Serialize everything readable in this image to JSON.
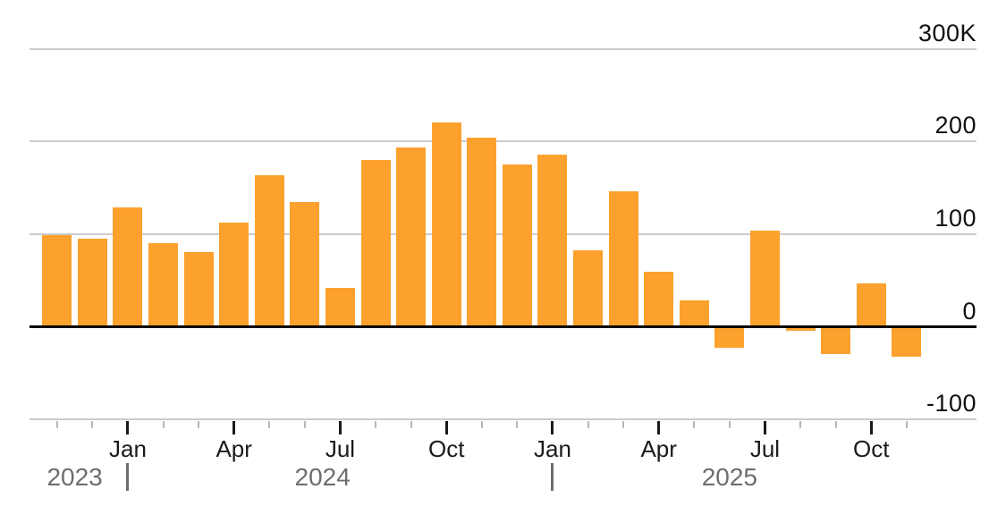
{
  "chart_data": {
    "type": "bar",
    "title": "",
    "x": [
      "Nov 2023",
      "Dec 2023",
      "Jan 2024",
      "Feb 2024",
      "Mar 2024",
      "Apr 2024",
      "May 2024",
      "Jun 2024",
      "Jul 2024",
      "Aug 2024",
      "Sep 2024",
      "Oct 2024",
      "Nov 2024",
      "Dec 2024",
      "Jan 2025",
      "Feb 2025",
      "Mar 2025",
      "Apr 2025",
      "May 2025",
      "Jun 2025",
      "Jul 2025",
      "Aug 2025",
      "Sep 2025",
      "Oct 2025",
      "Nov 2025"
    ],
    "values": [
      99,
      95,
      129,
      90,
      81,
      113,
      164,
      135,
      42,
      180,
      194,
      221,
      204,
      175,
      186,
      83,
      146,
      60,
      29,
      -22,
      104,
      -4,
      -29,
      47,
      -32
    ],
    "unit": "K",
    "ylim": [
      -100,
      300
    ],
    "grid": "horizontal",
    "legend_position": "none",
    "y_axis": {
      "position": "right",
      "ticks": [
        {
          "label": "300K",
          "value": 300
        },
        {
          "label": "200",
          "value": 200
        },
        {
          "label": "100",
          "value": 100
        },
        {
          "label": "0",
          "value": 0
        },
        {
          "label": "-100",
          "value": -100
        }
      ]
    },
    "x_axis": {
      "major_tick_months": [
        "Jan",
        "Apr",
        "Jul",
        "Oct"
      ],
      "years": [
        "2023",
        "2024",
        "2025"
      ],
      "year_separator_glyph": "|"
    }
  },
  "colors": {
    "bar": "#FCA12D",
    "gridline": "#cccccc",
    "zero_line": "#000000",
    "axis_text": "#111111",
    "month_text": "#1a1a1a",
    "year_text": "#6e6e6e",
    "minor_tick": "#b8b8b8",
    "major_tick": "#1a1a1a"
  }
}
